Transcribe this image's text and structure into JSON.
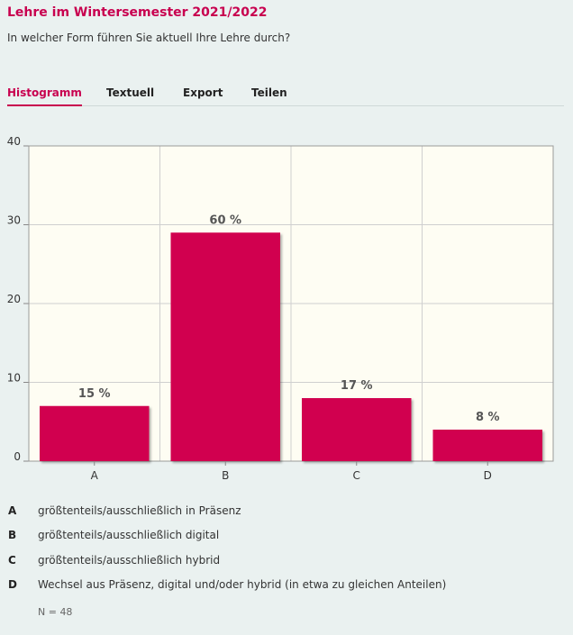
{
  "header": {
    "title": "Lehre im Wintersemester 2021/2022",
    "question": "In welcher Form führen Sie aktuell Ihre Lehre durch?"
  },
  "tabs": [
    {
      "label": "Histogramm",
      "active": true
    },
    {
      "label": "Textuell",
      "active": false
    },
    {
      "label": "Export",
      "active": false
    },
    {
      "label": "Teilen",
      "active": false
    }
  ],
  "colors": {
    "accent": "#c8004f",
    "bar": "#d10050",
    "plot_background": "#fefdf3",
    "page_background": "#eaf1f0"
  },
  "chart_data": {
    "type": "bar",
    "categories": [
      "A",
      "B",
      "C",
      "D"
    ],
    "values": [
      7,
      29,
      8,
      4
    ],
    "data_labels": [
      "15 %",
      "60 %",
      "17 %",
      "8 %"
    ],
    "yticks": [
      0,
      10,
      20,
      30,
      40
    ],
    "ylim": [
      0,
      40
    ],
    "grid": true
  },
  "legend": [
    {
      "key": "A",
      "text": "größtenteils/ausschließlich in Präsenz"
    },
    {
      "key": "B",
      "text": "größtenteils/ausschließlich digital"
    },
    {
      "key": "C",
      "text": "größtenteils/ausschließlich hybrid"
    },
    {
      "key": "D",
      "text": "Wechsel aus Präsenz, digital und/oder hybrid (in etwa zu gleichen Anteilen)"
    }
  ],
  "footer": {
    "n_label": "N = 48"
  }
}
